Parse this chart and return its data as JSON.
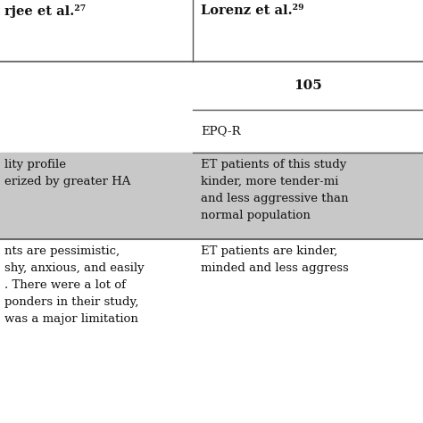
{
  "col1_header": "rjee et al.²⁷",
  "col2_header": "Lorenz et al.²⁹",
  "row1_col2": "105",
  "row2_col2": "EPQ-R",
  "row3_col1": "lity profile\nerized by greater HA",
  "row3_col2": "ET patients of this study\nkinder, more tender-mi\nand less aggressive than\nnormal population",
  "row4_col1": "nts are pessimistic,\nshy, anxious, and easily\n. There were a lot of\nponders in their study,\nwas a major limitation",
  "row4_col2": "ET patients are kinder,\nminded and less aggress",
  "bg_gray": "#c8c8c8",
  "bg_white": "#ffffff",
  "line_color": "#555555",
  "text_color": "#111111",
  "header_fontsize": 10.5,
  "body_fontsize": 9.5,
  "col_split": 0.455,
  "row_tops": [
    1.0,
    0.855,
    0.74,
    0.64,
    0.435,
    0.0
  ]
}
